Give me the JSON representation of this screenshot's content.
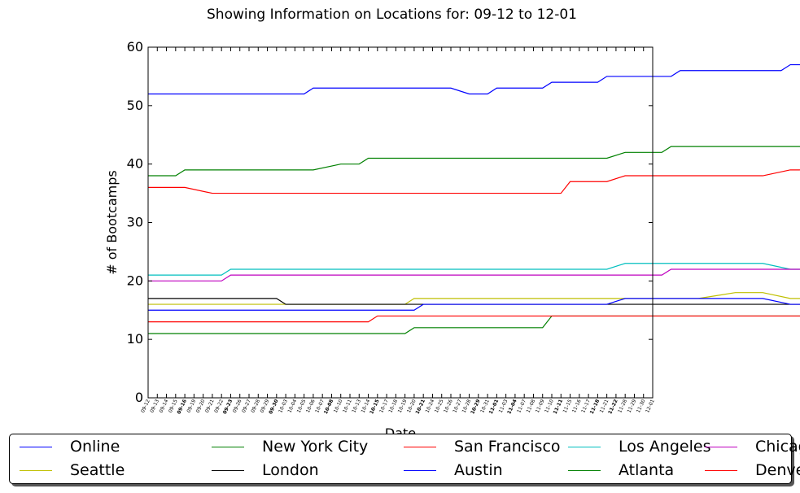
{
  "chart_data": {
    "type": "line",
    "title": "Showing Information on Locations for: 09-12 to 12-01",
    "xlabel": "Date",
    "ylabel": "# of Bootcamps",
    "ylim": [
      0,
      60
    ],
    "yticks": [
      0,
      10,
      20,
      30,
      40,
      50,
      60
    ],
    "grid": false,
    "legend_position": "bottom, 5 columns",
    "x_tick_labels": [
      {
        "label": "09-12",
        "bold": false
      },
      {
        "label": "09-13",
        "bold": false
      },
      {
        "label": "09-14",
        "bold": false
      },
      {
        "label": "09-15",
        "bold": false
      },
      {
        "label": "09-16",
        "bold": true
      },
      {
        "label": "09-19",
        "bold": false
      },
      {
        "label": "09-20",
        "bold": false
      },
      {
        "label": "09-21",
        "bold": false
      },
      {
        "label": "09-22",
        "bold": false
      },
      {
        "label": "09-23",
        "bold": true
      },
      {
        "label": "09-26",
        "bold": false
      },
      {
        "label": "09-27",
        "bold": false
      },
      {
        "label": "09-28",
        "bold": false
      },
      {
        "label": "09-29",
        "bold": false
      },
      {
        "label": "09-30",
        "bold": true
      },
      {
        "label": "10-03",
        "bold": false
      },
      {
        "label": "10-04",
        "bold": false
      },
      {
        "label": "10-05",
        "bold": false
      },
      {
        "label": "10-06",
        "bold": false
      },
      {
        "label": "10-07",
        "bold": false
      },
      {
        "label": "10-08",
        "bold": true
      },
      {
        "label": "10-10",
        "bold": false
      },
      {
        "label": "10-11",
        "bold": false
      },
      {
        "label": "10-13",
        "bold": false
      },
      {
        "label": "10-14",
        "bold": false
      },
      {
        "label": "10-15",
        "bold": true
      },
      {
        "label": "10-17",
        "bold": false
      },
      {
        "label": "10-18",
        "bold": false
      },
      {
        "label": "10-19",
        "bold": false
      },
      {
        "label": "10-20",
        "bold": false
      },
      {
        "label": "10-21",
        "bold": true
      },
      {
        "label": "10-24",
        "bold": false
      },
      {
        "label": "10-25",
        "bold": false
      },
      {
        "label": "10-26",
        "bold": false
      },
      {
        "label": "10-27",
        "bold": false
      },
      {
        "label": "10-28",
        "bold": false
      },
      {
        "label": "10-29",
        "bold": true
      },
      {
        "label": "10-31",
        "bold": false
      },
      {
        "label": "11-01",
        "bold": true
      },
      {
        "label": "11-03",
        "bold": false
      },
      {
        "label": "11-04",
        "bold": true
      },
      {
        "label": "11-07",
        "bold": false
      },
      {
        "label": "11-08",
        "bold": false
      },
      {
        "label": "11-09",
        "bold": false
      },
      {
        "label": "11-10",
        "bold": false
      },
      {
        "label": "11-11",
        "bold": true
      },
      {
        "label": "11-15",
        "bold": false
      },
      {
        "label": "11-16",
        "bold": false
      },
      {
        "label": "11-17",
        "bold": false
      },
      {
        "label": "11-18",
        "bold": true
      },
      {
        "label": "11-21",
        "bold": false
      },
      {
        "label": "11-22",
        "bold": true
      },
      {
        "label": "11-28",
        "bold": false
      },
      {
        "label": "11-29",
        "bold": false
      },
      {
        "label": "11-30",
        "bold": false
      },
      {
        "label": "12-01",
        "bold": false
      }
    ],
    "series": [
      {
        "name": "Online",
        "color": "#0000ff",
        "points": [
          [
            0,
            52
          ],
          [
            17,
            52
          ],
          [
            18,
            53
          ],
          [
            33,
            53
          ],
          [
            35,
            52
          ],
          [
            37,
            52
          ],
          [
            38,
            53
          ],
          [
            43,
            53
          ],
          [
            44,
            54
          ],
          [
            49,
            54
          ],
          [
            50,
            55
          ],
          [
            57,
            55
          ],
          [
            58,
            56
          ],
          [
            69,
            56
          ],
          [
            70,
            57
          ],
          [
            77,
            57
          ],
          [
            78,
            58
          ],
          [
            79,
            58
          ],
          [
            80,
            59
          ]
        ]
      },
      {
        "name": "New York City",
        "color": "#008000",
        "points": [
          [
            0,
            38
          ],
          [
            3,
            38
          ],
          [
            4,
            39
          ],
          [
            18,
            39
          ],
          [
            21,
            40
          ],
          [
            23,
            40
          ],
          [
            24,
            41
          ],
          [
            50,
            41
          ],
          [
            52,
            42
          ],
          [
            56,
            42
          ],
          [
            57,
            43
          ],
          [
            80,
            43
          ]
        ]
      },
      {
        "name": "San Francisco",
        "color": "#ff0000",
        "points": [
          [
            0,
            36
          ],
          [
            4,
            36
          ],
          [
            7,
            35
          ],
          [
            45,
            35
          ],
          [
            46,
            37
          ],
          [
            50,
            37
          ],
          [
            52,
            38
          ],
          [
            67,
            38
          ],
          [
            70,
            39
          ],
          [
            71,
            39
          ],
          [
            77,
            40
          ],
          [
            79,
            40
          ],
          [
            80,
            40
          ]
        ]
      },
      {
        "name": "Los Angeles",
        "color": "#00bfbf",
        "points": [
          [
            0,
            21
          ],
          [
            8,
            21
          ],
          [
            9,
            22
          ],
          [
            50,
            22
          ],
          [
            52,
            23
          ],
          [
            67,
            23
          ],
          [
            70,
            22
          ],
          [
            80,
            22
          ]
        ]
      },
      {
        "name": "Chicago",
        "color": "#bf00bf",
        "points": [
          [
            0,
            20
          ],
          [
            8,
            20
          ],
          [
            9,
            21
          ],
          [
            56,
            21
          ],
          [
            57,
            22
          ],
          [
            80,
            22
          ]
        ]
      },
      {
        "name": "Seattle",
        "color": "#bfbf00",
        "points": [
          [
            0,
            16
          ],
          [
            28,
            16
          ],
          [
            29,
            17
          ],
          [
            60,
            17
          ],
          [
            64,
            18
          ],
          [
            67,
            18
          ],
          [
            70,
            17
          ],
          [
            80,
            17
          ]
        ]
      },
      {
        "name": "London",
        "color": "#000000",
        "points": [
          [
            0,
            17
          ],
          [
            14,
            17
          ],
          [
            15,
            16
          ],
          [
            80,
            16
          ]
        ]
      },
      {
        "name": "Austin",
        "color": "#0000ff",
        "points": [
          [
            0,
            15
          ],
          [
            29,
            15
          ],
          [
            30,
            16
          ],
          [
            50,
            16
          ],
          [
            52,
            17
          ],
          [
            67,
            17
          ],
          [
            70,
            16
          ],
          [
            80,
            16
          ]
        ]
      },
      {
        "name": "Atlanta",
        "color": "#008000",
        "points": [
          [
            0,
            11
          ],
          [
            28,
            11
          ],
          [
            29,
            12
          ],
          [
            43,
            12
          ],
          [
            44,
            14
          ],
          [
            80,
            14
          ]
        ]
      },
      {
        "name": "Denver",
        "color": "#ff0000",
        "points": [
          [
            0,
            13
          ],
          [
            24,
            13
          ],
          [
            25,
            14
          ],
          [
            80,
            14
          ]
        ]
      }
    ]
  }
}
